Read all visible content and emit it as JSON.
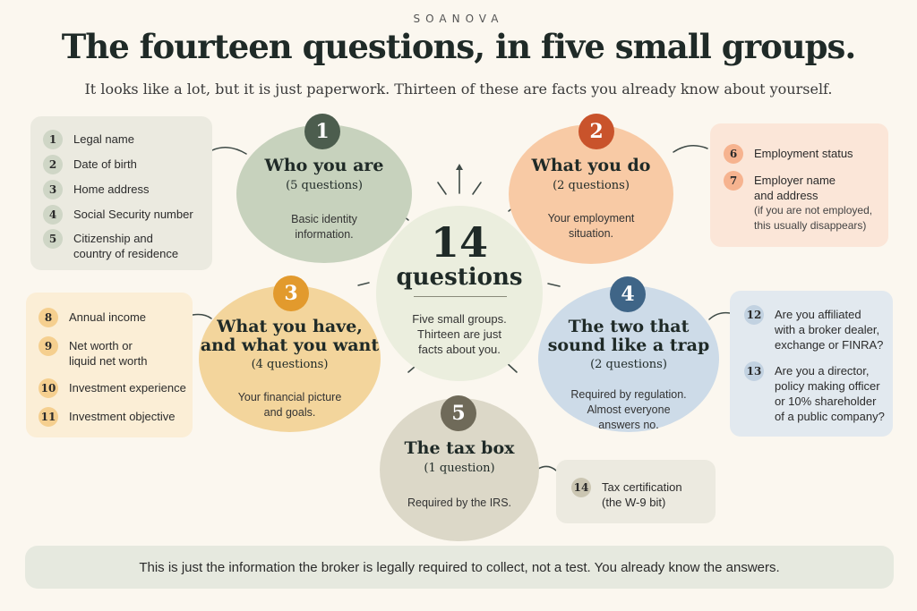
{
  "brand": "SOANOVA",
  "title": "The fourteen questions, in five small groups.",
  "subtitle": "It looks like a lot, but it is just paperwork. Thirteen of these are facts you already know about yourself.",
  "center": {
    "number": "14",
    "label": "questions",
    "description_lines": [
      "Five small groups.",
      "Thirteen are just",
      "facts about you."
    ]
  },
  "groups": [
    {
      "badge": "1",
      "title_lines": [
        "Who you are"
      ],
      "count": "(5 questions)",
      "description_lines": [
        "Basic identity",
        "information."
      ],
      "color": "#c7d2bd",
      "badge_color": "#4c5d4e",
      "items": [
        {
          "num": "1",
          "lines": [
            "Legal name"
          ]
        },
        {
          "num": "2",
          "lines": [
            "Date of birth"
          ]
        },
        {
          "num": "3",
          "lines": [
            "Home address"
          ]
        },
        {
          "num": "4",
          "lines": [
            "Social Security number"
          ]
        },
        {
          "num": "5",
          "lines": [
            "Citizenship and",
            "country of residence"
          ]
        }
      ]
    },
    {
      "badge": "2",
      "title_lines": [
        "What you do"
      ],
      "count": "(2 questions)",
      "description_lines": [
        "Your employment",
        "situation."
      ],
      "color": "#f8caa5",
      "badge_color": "#c9532b",
      "items": [
        {
          "num": "6",
          "lines": [
            "Employment status"
          ]
        },
        {
          "num": "7",
          "lines": [
            "Employer name",
            "and address"
          ],
          "note_lines": [
            "(if you are not employed,",
            "this usually disappears)"
          ]
        }
      ]
    },
    {
      "badge": "3",
      "title_lines": [
        "What you have,",
        "and what you want"
      ],
      "count": "(4 questions)",
      "description_lines": [
        "Your financial picture",
        "and goals."
      ],
      "color": "#f3d59c",
      "badge_color": "#e29a2d",
      "items": [
        {
          "num": "8",
          "lines": [
            "Annual income"
          ]
        },
        {
          "num": "9",
          "lines": [
            "Net worth or",
            "liquid net worth"
          ]
        },
        {
          "num": "10",
          "lines": [
            "Investment experience"
          ]
        },
        {
          "num": "11",
          "lines": [
            "Investment objective"
          ]
        }
      ]
    },
    {
      "badge": "4",
      "title_lines": [
        "The two that",
        "sound like a trap"
      ],
      "count": "(2 questions)",
      "description_lines": [
        "Required by regulation.",
        "Almost everyone",
        "answers no."
      ],
      "color": "#cddbe8",
      "badge_color": "#3f6587",
      "items": [
        {
          "num": "12",
          "lines": [
            "Are you affiliated",
            "with a broker dealer,",
            "exchange or FINRA?"
          ]
        },
        {
          "num": "13",
          "lines": [
            "Are you a director,",
            "policy making officer",
            "or 10% shareholder",
            "of a public company?"
          ]
        }
      ]
    },
    {
      "badge": "5",
      "title_lines": [
        "The tax box"
      ],
      "count": "(1 question)",
      "description_lines": [
        "Required by the IRS."
      ],
      "color": "#dcd8c8",
      "badge_color": "#6f6a59",
      "items": [
        {
          "num": "14",
          "lines": [
            "Tax certification",
            "(the W-9 bit)"
          ]
        }
      ]
    }
  ],
  "footer": "This is just the information the broker is legally required to collect, not a test. You already know the answers."
}
